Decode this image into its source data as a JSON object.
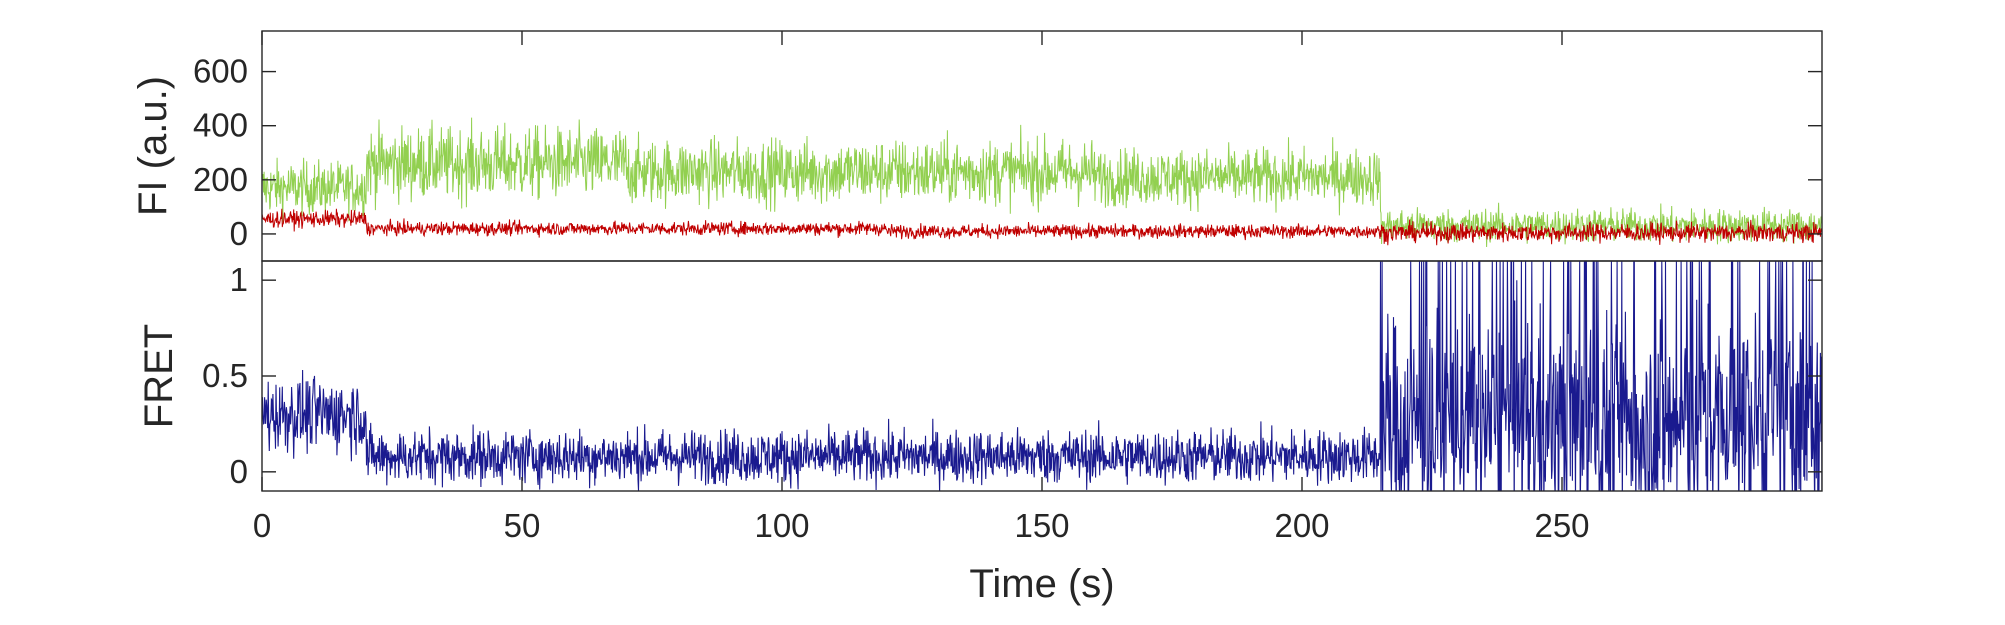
{
  "colors": {
    "donor": "#92d050",
    "acceptor": "#c00000",
    "fret": "#1a1a8f",
    "axes": "#262626"
  },
  "chart_data": [
    {
      "type": "line",
      "panel": "top",
      "xlabel": "",
      "ylabel": "FI (a.u.)",
      "xlim": [
        0,
        300
      ],
      "ylim": [
        -100,
        750
      ],
      "yticks": [
        0,
        200,
        400,
        600
      ],
      "ytick_labels": [
        "0",
        "200",
        "400",
        "600"
      ],
      "series": [
        {
          "color": "#92d050",
          "segments": [
            {
              "x_start": 0,
              "x_end": 20,
              "mean": 170,
              "noise": 70
            },
            {
              "x_start": 20,
              "x_end": 70,
              "mean": 260,
              "noise": 95
            },
            {
              "x_start": 70,
              "x_end": 160,
              "mean": 230,
              "noise": 85
            },
            {
              "x_start": 160,
              "x_end": 215,
              "mean": 210,
              "noise": 75
            },
            {
              "x_start": 215,
              "x_end": 300,
              "mean": 30,
              "noise": 45
            }
          ]
        },
        {
          "color": "#c00000",
          "segments": [
            {
              "x_start": 0,
              "x_end": 20,
              "mean": 55,
              "noise": 22
            },
            {
              "x_start": 20,
              "x_end": 120,
              "mean": 20,
              "noise": 18
            },
            {
              "x_start": 120,
              "x_end": 215,
              "mean": 10,
              "noise": 18
            },
            {
              "x_start": 215,
              "x_end": 300,
              "mean": 5,
              "noise": 25
            }
          ]
        }
      ]
    },
    {
      "type": "line",
      "panel": "bottom",
      "xlabel": "Time (s)",
      "ylabel": "FRET",
      "xlim": [
        0,
        300
      ],
      "ylim": [
        -0.1,
        1.1
      ],
      "xticks": [
        0,
        50,
        100,
        150,
        200,
        250
      ],
      "xtick_labels": [
        "0",
        "50",
        "100",
        "150",
        "200",
        "250"
      ],
      "yticks": [
        0,
        0.5,
        1
      ],
      "ytick_labels": [
        "0",
        "0.5",
        "1"
      ],
      "series": [
        {
          "color": "#1a1a8f",
          "segments": [
            {
              "x_start": 0,
              "x_end": 20,
              "mean": 0.3,
              "noise": 0.14
            },
            {
              "x_start": 20,
              "x_end": 215,
              "mean": 0.08,
              "noise": 0.1
            },
            {
              "x_start": 215,
              "x_end": 300,
              "mean": 0.25,
              "noise": 0.4
            }
          ]
        }
      ]
    }
  ]
}
